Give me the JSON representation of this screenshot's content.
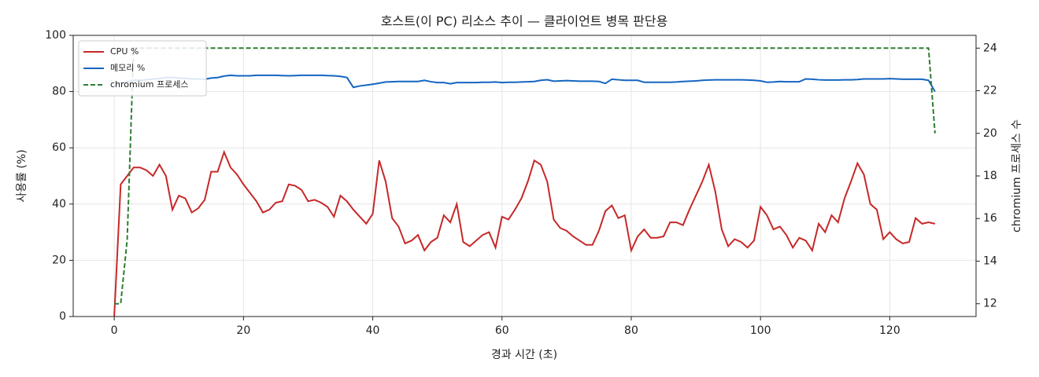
{
  "chart_data": {
    "type": "line",
    "title": "호스트(이 PC) 리소스 추이 — 클라이언트 병목 판단용",
    "xlabel": "경과 시간 (초)",
    "ylabel": "사용률 (%)",
    "y2label": "chromium 프로세스 수",
    "x": [
      0,
      1,
      2,
      3,
      4,
      5,
      6,
      7,
      8,
      9,
      10,
      11,
      12,
      13,
      14,
      15,
      16,
      17,
      18,
      19,
      20,
      21,
      22,
      23,
      24,
      25,
      26,
      27,
      28,
      29,
      30,
      31,
      32,
      33,
      34,
      35,
      36,
      37,
      38,
      39,
      40,
      41,
      42,
      43,
      44,
      45,
      46,
      47,
      48,
      49,
      50,
      51,
      52,
      53,
      54,
      55,
      56,
      57,
      58,
      59,
      60,
      61,
      62,
      63,
      64,
      65,
      66,
      67,
      68,
      69,
      70,
      71,
      72,
      73,
      74,
      75,
      76,
      77,
      78,
      79,
      80,
      81,
      82,
      83,
      84,
      85,
      86,
      87,
      88,
      89,
      90,
      91,
      92,
      93,
      94,
      95,
      96,
      97,
      98,
      99,
      100,
      101,
      102,
      103,
      104,
      105,
      106,
      107,
      108,
      109,
      110,
      111,
      112,
      113,
      114,
      115,
      116,
      117,
      118,
      119,
      120,
      121,
      122,
      123,
      124,
      125,
      126,
      127
    ],
    "series": [
      {
        "name": "CPU %",
        "color": "#c62828",
        "linestyle": "solid",
        "values": [
          0,
          47,
          50,
          53,
          53,
          52,
          50,
          54,
          50,
          38,
          43,
          42,
          37,
          38.5,
          41.5,
          51.5,
          51.5,
          58.5,
          53,
          50.5,
          47,
          44,
          41,
          37,
          38,
          40.5,
          41,
          47,
          46.5,
          45,
          41,
          41.5,
          40.5,
          39,
          35.5,
          43,
          41,
          38,
          35.5,
          33,
          36.5,
          55.5,
          48,
          35,
          32,
          26,
          27,
          29,
          23.5,
          26.5,
          28,
          36,
          33.5,
          40,
          26.5,
          25,
          27,
          29,
          30,
          24.5,
          35.5,
          34.5,
          38,
          42,
          48,
          55.5,
          54,
          48,
          34.5,
          31.5,
          30.5,
          28.5,
          27,
          25.5,
          25.5,
          30.5,
          37.5,
          39.5,
          35,
          36,
          23.5,
          28.5,
          31,
          28,
          28,
          28.5,
          33.5,
          33.5,
          32.5,
          38,
          43,
          48,
          54,
          44.5,
          31,
          25,
          27.5,
          26.5,
          24.5,
          27,
          39,
          36,
          31,
          32,
          29,
          24.5,
          28,
          27,
          23.5,
          33,
          30,
          36,
          33.5,
          42,
          48,
          54.5,
          50.5,
          40,
          38,
          27.5,
          30,
          27.5,
          26,
          26.5,
          35,
          33,
          33.5,
          33
        ]
      },
      {
        "name": "메모리 %",
        "color": "#1565c0",
        "linestyle": "solid",
        "values": [
          82,
          83,
          83.5,
          84,
          84,
          84.2,
          84.5,
          84.6,
          85,
          85,
          84.8,
          84.7,
          84.5,
          84.5,
          84.4,
          84.8,
          85,
          85.5,
          85.8,
          85.6,
          85.6,
          85.6,
          85.8,
          85.8,
          85.8,
          85.8,
          85.7,
          85.6,
          85.7,
          85.8,
          85.8,
          85.8,
          85.8,
          85.7,
          85.6,
          85.4,
          85,
          81.5,
          82,
          82.3,
          82.6,
          83,
          83.4,
          83.5,
          83.6,
          83.6,
          83.6,
          83.6,
          84,
          83.5,
          83.2,
          83.2,
          82.8,
          83.2,
          83.2,
          83.2,
          83.2,
          83.3,
          83.3,
          83.4,
          83.2,
          83.3,
          83.3,
          83.4,
          83.5,
          83.6,
          84,
          84.2,
          83.7,
          83.8,
          83.9,
          83.8,
          83.7,
          83.7,
          83.7,
          83.6,
          82.9,
          84.4,
          84.2,
          84,
          84,
          84,
          83.3,
          83.3,
          83.3,
          83.3,
          83.3,
          83.4,
          83.6,
          83.7,
          83.8,
          84,
          84.1,
          84.2,
          84.2,
          84.2,
          84.2,
          84.2,
          84.1,
          84,
          83.8,
          83.3,
          83.4,
          83.6,
          83.5,
          83.5,
          83.5,
          84.5,
          84.4,
          84.2,
          84.1,
          84.1,
          84.1,
          84.2,
          84.2,
          84.3,
          84.5,
          84.5,
          84.5,
          84.5,
          84.6,
          84.5,
          84.4,
          84.4,
          84.4,
          84.4,
          84,
          80
        ]
      },
      {
        "name": "chromium 프로세스",
        "color": "#2e7d32",
        "linestyle": "dashed",
        "axis": "y2",
        "values": [
          12,
          12,
          15,
          24,
          24,
          24,
          24,
          24,
          24,
          24,
          24,
          24,
          24,
          24,
          24,
          24,
          24,
          24,
          24,
          24,
          24,
          24,
          24,
          24,
          24,
          24,
          24,
          24,
          24,
          24,
          24,
          24,
          24,
          24,
          24,
          24,
          24,
          24,
          24,
          24,
          24,
          24,
          24,
          24,
          24,
          24,
          24,
          24,
          24,
          24,
          24,
          24,
          24,
          24,
          24,
          24,
          24,
          24,
          24,
          24,
          24,
          24,
          24,
          24,
          24,
          24,
          24,
          24,
          24,
          24,
          24,
          24,
          24,
          24,
          24,
          24,
          24,
          24,
          24,
          24,
          24,
          24,
          24,
          24,
          24,
          24,
          24,
          24,
          24,
          24,
          24,
          24,
          24,
          24,
          24,
          24,
          24,
          24,
          24,
          24,
          24,
          24,
          24,
          24,
          24,
          24,
          24,
          24,
          24,
          24,
          24,
          24,
          24,
          24,
          24,
          24,
          24,
          24,
          24,
          24,
          24,
          24,
          24,
          24,
          24,
          24,
          24,
          20
        ]
      }
    ],
    "xlim": [
      -6.35,
      133.35
    ],
    "xticks": [
      0,
      20,
      40,
      60,
      80,
      100,
      120
    ],
    "ylim": [
      0,
      100
    ],
    "yticks": [
      0,
      20,
      40,
      60,
      80,
      100
    ],
    "y2lim": [
      11.4,
      24.6
    ],
    "y2ticks": [
      12,
      14,
      16,
      18,
      20,
      22,
      24
    ],
    "grid": true,
    "legend": "upper left"
  }
}
